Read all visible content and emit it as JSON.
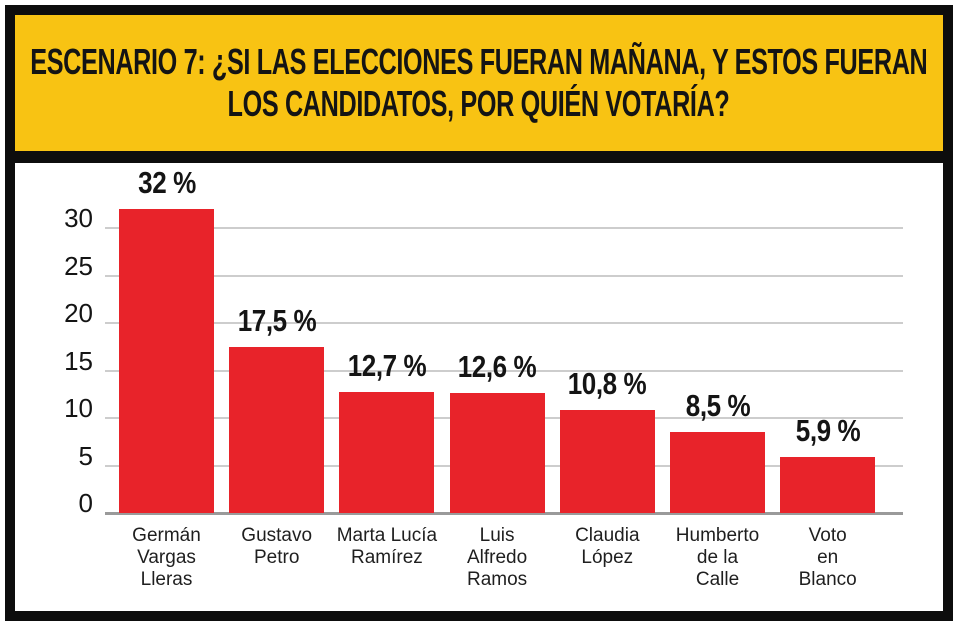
{
  "banner": {
    "title_line1": "ESCENARIO 7: ¿SI LAS ELECCIONES FUERAN MAÑANA, Y ESTOS FUERAN",
    "title_line2": "LOS CANDIDATOS, POR QUIÉN VOTARÍA?",
    "background_color": "#F8C313",
    "text_color": "#141414"
  },
  "chart_data": {
    "type": "bar",
    "categories": [
      "Germán\nVargas\nLleras",
      "Gustavo\nPetro",
      "Marta Lucía\nRamírez",
      "Luis\nAlfredo\nRamos",
      "Claudia\nLópez",
      "Humberto\nde la\nCalle",
      "Voto\nen\nBlanco"
    ],
    "values": [
      32,
      17.5,
      12.7,
      12.6,
      10.8,
      8.5,
      5.9
    ],
    "value_labels": [
      "32 %",
      "17,5 %",
      "12,7 %",
      "12,6 %",
      "10,8 %",
      "8,5 %",
      "5,9 %"
    ],
    "y_ticks": [
      0,
      5,
      10,
      15,
      20,
      25,
      30
    ],
    "ylim": [
      0,
      33
    ],
    "xlabel": "",
    "ylabel": "",
    "grid": true,
    "legend": false,
    "bar_color": "#E8232A",
    "grid_color": "#CDCDCD",
    "axis_color": "#9A9A9A"
  }
}
